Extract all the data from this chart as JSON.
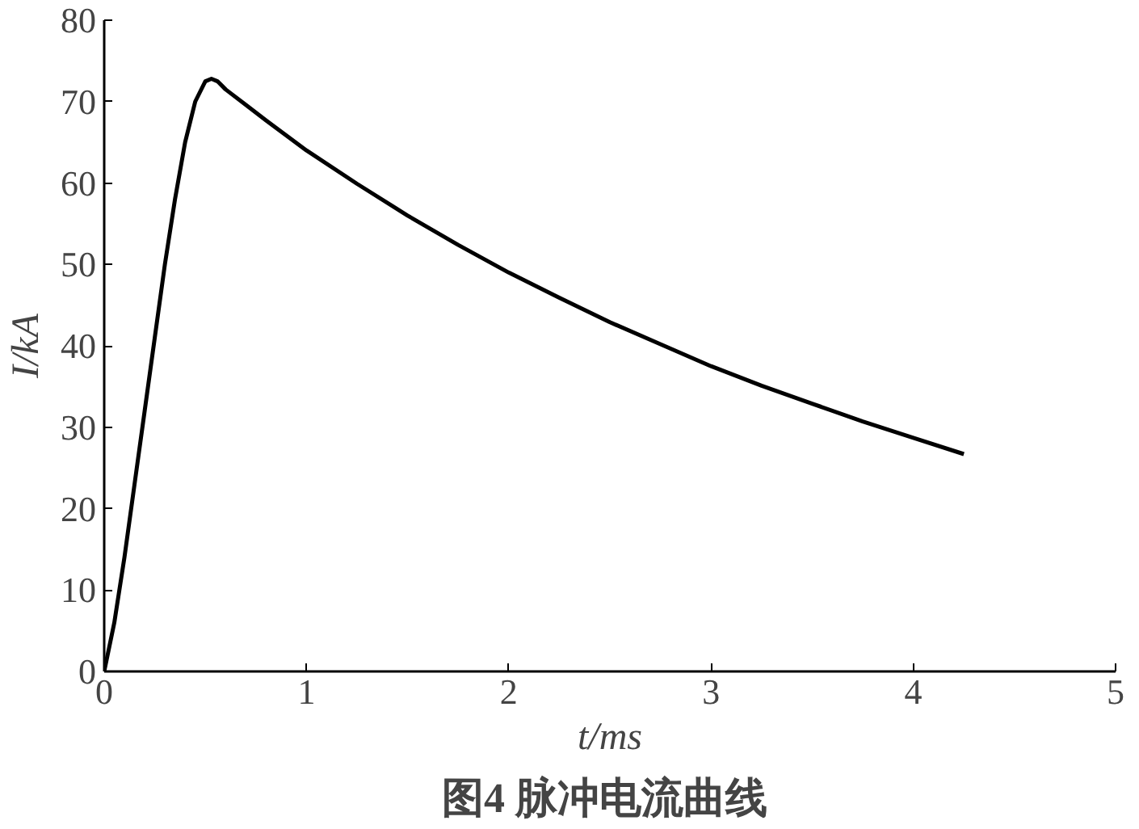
{
  "chart_data": {
    "type": "line",
    "title": "图4  脉冲电流曲线",
    "xlabel": "t/ms",
    "ylabel": "I/kA",
    "x": [
      0,
      0.05,
      0.1,
      0.15,
      0.2,
      0.25,
      0.3,
      0.35,
      0.4,
      0.45,
      0.5,
      0.53,
      0.56,
      0.6,
      0.7,
      0.8,
      1,
      1.25,
      1.5,
      1.75,
      2,
      2.25,
      2.5,
      2.75,
      3,
      3.25,
      3.5,
      3.75,
      4,
      4.25
    ],
    "series": [
      {
        "color": "#000000",
        "values": [
          0,
          6,
          14,
          23,
          32,
          41,
          50,
          58,
          65,
          70,
          72.5,
          72.8,
          72.5,
          71.5,
          69.6,
          67.7,
          64,
          59.9,
          56,
          52.4,
          49,
          45.9,
          42.9,
          40.2,
          37.5,
          35.1,
          32.9,
          30.7,
          28.7,
          26.7
        ]
      }
    ],
    "xlim": [
      0,
      5
    ],
    "ylim": [
      0,
      80
    ],
    "xticks": [
      0,
      1,
      2,
      3,
      4,
      5
    ],
    "yticks": [
      0,
      10,
      20,
      30,
      40,
      50,
      60,
      70,
      80
    ],
    "grid": false,
    "line_style": "solid",
    "marker": "none"
  }
}
